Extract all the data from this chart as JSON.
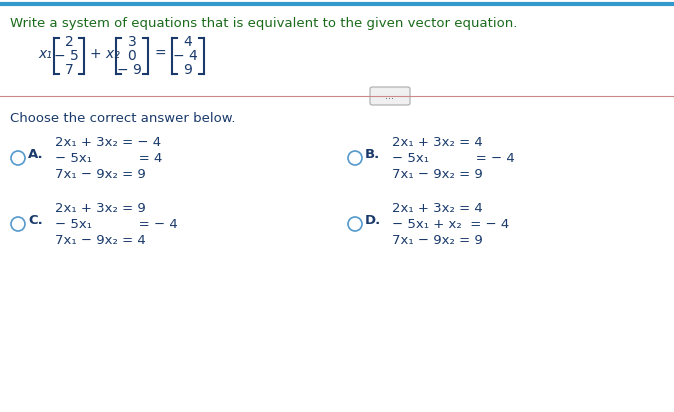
{
  "title": "Write a system of equations that is equivalent to the given vector equation.",
  "title_color": "#1a6b1a",
  "bg_color": "#ffffff",
  "border_color": "#3399cc",
  "vector_eq": {
    "x1_label": "x₁",
    "v1": [
      "2",
      "− 5",
      "7"
    ],
    "op": "+ x₂",
    "v2": [
      "3",
      "0",
      "− 9"
    ],
    "eq": "=",
    "v3": [
      "4",
      "− 4",
      "9"
    ]
  },
  "choose_text": "Choose the correct answer below.",
  "options": {
    "A": {
      "eq1": "2x₁ + 3x₂ = − 4",
      "eq2": "− 5x₁           = 4",
      "eq3": "7x₁ − 9x₂ = 9"
    },
    "B": {
      "eq1": "2x₁ + 3x₂ = 4",
      "eq2": "− 5x₁           = − 4",
      "eq3": "7x₁ − 9x₂ = 9"
    },
    "C": {
      "eq1": "2x₁ + 3x₂ = 9",
      "eq2": "− 5x₁           = − 4",
      "eq3": "7x₁ − 9x₂ = 4"
    },
    "D": {
      "eq1": "2x₁ + 3x₂ = 4",
      "eq2": "− 5x₁ + x₂  = − 4",
      "eq3": "7x₁ − 9x₂ = 9"
    }
  },
  "text_color": "#1a3a6b",
  "eq_color": "#1a3a6b",
  "circle_color": "#5599cc"
}
